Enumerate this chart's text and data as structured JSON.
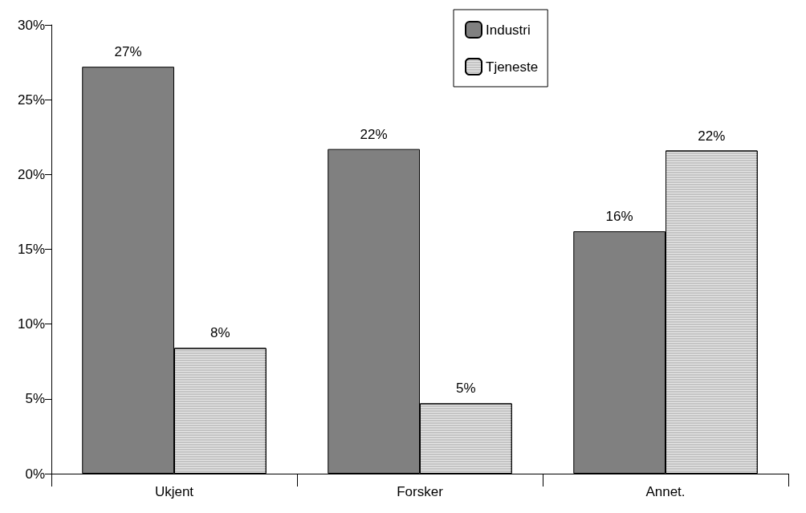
{
  "chart_data": {
    "type": "bar",
    "categories": [
      "Ukjent",
      "Forsker",
      "Annet."
    ],
    "series": [
      {
        "name": "Industri",
        "color": "#808080",
        "values": [
          27.2,
          21.7,
          16.2
        ],
        "value_labels": [
          "27%",
          "22%",
          "16%"
        ]
      },
      {
        "name": "Tjeneste",
        "color": "#c4c4c4",
        "values": [
          8.4,
          4.7,
          21.6
        ],
        "value_labels": [
          "8%",
          "5%",
          "22%"
        ]
      }
    ],
    "ylim": [
      0,
      30
    ],
    "yticks": [
      {
        "value": 0,
        "label": "0%"
      },
      {
        "value": 5,
        "label": "5%"
      },
      {
        "value": 10,
        "label": "10%"
      },
      {
        "value": 15,
        "label": "15%"
      },
      {
        "value": 20,
        "label": "20%"
      },
      {
        "value": 25,
        "label": "25%"
      },
      {
        "value": 30,
        "label": "30%"
      }
    ],
    "grid": false,
    "legend": "top"
  }
}
